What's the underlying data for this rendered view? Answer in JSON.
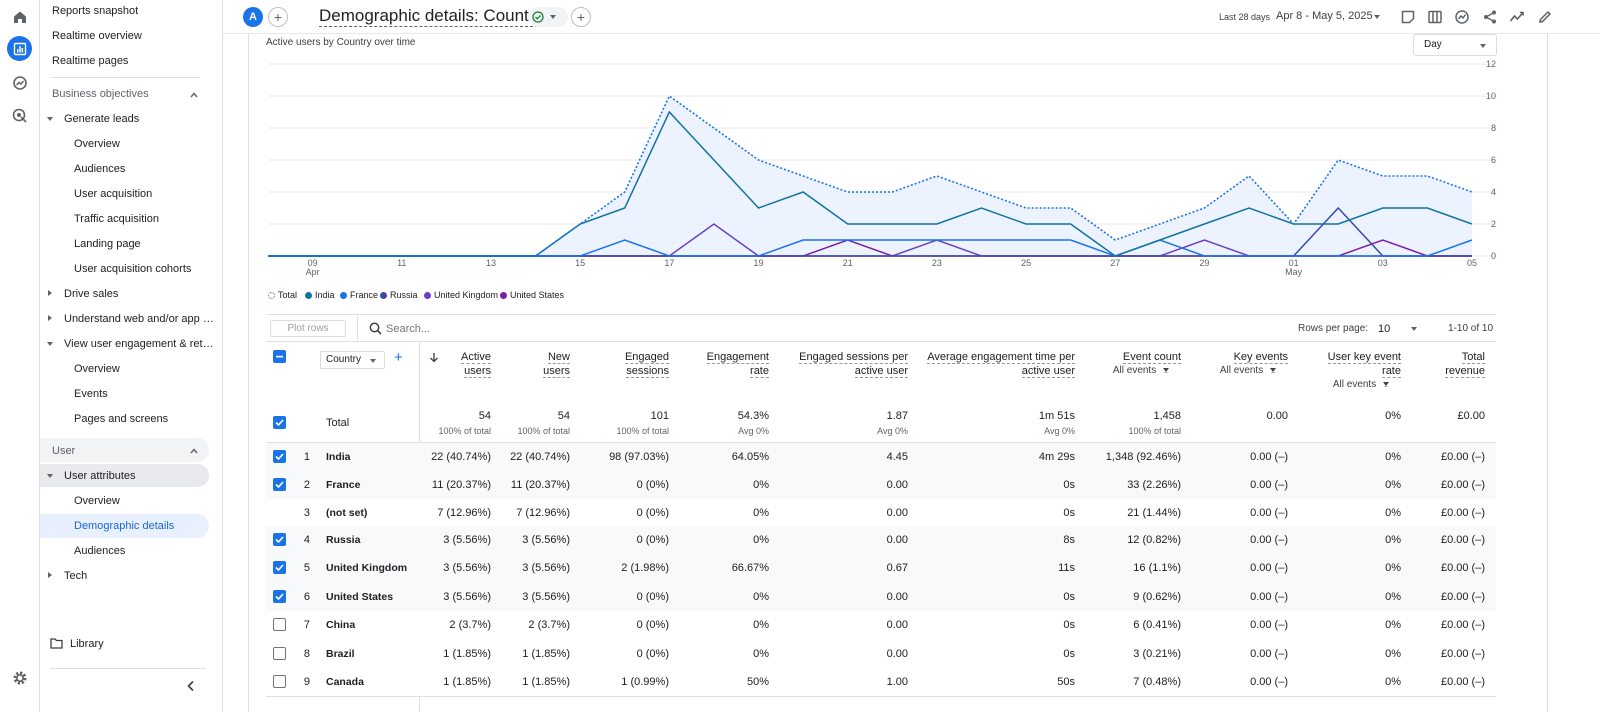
{
  "sidebar": {
    "items": [
      {
        "label": "Reports snapshot"
      },
      {
        "label": "Realtime overview"
      },
      {
        "label": "Realtime pages"
      },
      {
        "label": "Business objectives"
      },
      {
        "label": "Generate leads"
      },
      {
        "label": "Overview"
      },
      {
        "label": "Audiences"
      },
      {
        "label": "User acquisition"
      },
      {
        "label": "Traffic acquisition"
      },
      {
        "label": "Landing page"
      },
      {
        "label": "User acquisition cohorts"
      },
      {
        "label": "Drive sales"
      },
      {
        "label": "Understand web and/or app t..."
      },
      {
        "label": "View user engagement & rete..."
      },
      {
        "label": "Overview"
      },
      {
        "label": "Events"
      },
      {
        "label": "Pages and screens"
      },
      {
        "label": "User"
      },
      {
        "label": "User attributes"
      },
      {
        "label": "Overview"
      },
      {
        "label": "Demographic details"
      },
      {
        "label": "Audiences"
      },
      {
        "label": "Tech"
      }
    ],
    "library": "Library"
  },
  "header": {
    "avatar": "A",
    "title": "Demographic details: Country",
    "date_prefix": "Last 28 days",
    "date_range": "Apr 8 - May 5, 2025"
  },
  "chart_card": {
    "title": "Active users by Country over time",
    "granularity": "Day"
  },
  "chart_data": {
    "type": "line",
    "title": "Active users by Country over time",
    "x": [
      "Apr 8",
      "09",
      "10",
      "11",
      "12",
      "13",
      "14",
      "15",
      "16",
      "17",
      "18",
      "19",
      "20",
      "21",
      "22",
      "23",
      "24",
      "25",
      "26",
      "27",
      "28",
      "29",
      "30",
      "01",
      "02",
      "03",
      "04",
      "05"
    ],
    "x_tick_labels": [
      "09",
      "11",
      "13",
      "15",
      "17",
      "19",
      "21",
      "23",
      "25",
      "27",
      "29",
      "01",
      "03",
      "05"
    ],
    "x_tick_sublabels": {
      "09": "Apr",
      "01": "May"
    },
    "ylim": [
      0,
      12
    ],
    "y_ticks": [
      "0",
      "2",
      "4",
      "6",
      "8",
      "10",
      "12"
    ],
    "series": [
      {
        "name": "Total",
        "color": "#1a73e8",
        "style": "dotted",
        "values": [
          0,
          0,
          0,
          0,
          0,
          0,
          0,
          2,
          4,
          10,
          8,
          6,
          5,
          4,
          4,
          5,
          4,
          3,
          3,
          1,
          2,
          3,
          5,
          2,
          6,
          5,
          5,
          4
        ]
      },
      {
        "name": "India",
        "color": "#12739f",
        "style": "solid",
        "values": [
          0,
          0,
          0,
          0,
          0,
          0,
          0,
          2,
          3,
          9,
          6,
          3,
          4,
          2,
          2,
          2,
          3,
          2,
          2,
          0,
          1,
          2,
          3,
          2,
          2,
          3,
          3,
          2
        ]
      },
      {
        "name": "France",
        "color": "#1a73e8",
        "style": "solid",
        "values": [
          0,
          0,
          0,
          0,
          0,
          0,
          0,
          0,
          1,
          0,
          0,
          0,
          1,
          1,
          1,
          1,
          1,
          1,
          1,
          0,
          1,
          0,
          0,
          0,
          0,
          0,
          0,
          1
        ]
      },
      {
        "name": "Russia",
        "color": "#3949ab",
        "style": "solid",
        "values": [
          0,
          0,
          0,
          0,
          0,
          0,
          0,
          0,
          0,
          0,
          0,
          0,
          0,
          0,
          0,
          0,
          0,
          0,
          0,
          0,
          0,
          0,
          0,
          0,
          3,
          0,
          0,
          0
        ]
      },
      {
        "name": "United Kingdom",
        "color": "#6a3fc1",
        "style": "solid",
        "values": [
          0,
          0,
          0,
          0,
          0,
          0,
          0,
          0,
          0,
          0,
          2,
          0,
          0,
          0,
          0,
          1,
          0,
          0,
          0,
          0,
          0,
          1,
          0,
          0,
          0,
          0,
          0,
          0
        ]
      },
      {
        "name": "United States",
        "color": "#7b1fa2",
        "style": "solid",
        "values": [
          0,
          0,
          0,
          0,
          0,
          0,
          0,
          0,
          0,
          0,
          0,
          0,
          0,
          1,
          0,
          0,
          0,
          0,
          0,
          0,
          0,
          0,
          0,
          0,
          0,
          1,
          0,
          0
        ]
      }
    ]
  },
  "toolbar": {
    "plot_rows": "Plot rows",
    "search_placeholder": "Search...",
    "rows_per_page_label": "Rows per page:",
    "rows_per_page": "10",
    "pagination": "1-10 of 10"
  },
  "table": {
    "dimension": "Country",
    "columns": [
      {
        "l1": "Active",
        "l2": "users"
      },
      {
        "l1": "New",
        "l2": "users"
      },
      {
        "l1": "Engaged",
        "l2": "sessions"
      },
      {
        "l1": "Engagement",
        "l2": "rate"
      },
      {
        "l1": "Engaged sessions per",
        "l2": "active user"
      },
      {
        "l1": "Average engagement time per",
        "l2": "active user"
      },
      {
        "l1": "Event count",
        "l2": "",
        "filter": "All events"
      },
      {
        "l1": "Key events",
        "l2": "",
        "filter": "All events"
      },
      {
        "l1": "User key event",
        "l2": "rate",
        "filter": "All events"
      },
      {
        "l1": "Total",
        "l2": "revenue"
      }
    ],
    "total": {
      "label": "Total",
      "values": [
        "54",
        "54",
        "101",
        "54.3%",
        "1.87",
        "1m 51s",
        "1,458",
        "0.00",
        "0%",
        "£0.00"
      ],
      "subs": [
        "100% of total",
        "100% of total",
        "100% of total",
        "Avg 0%",
        "Avg 0%",
        "Avg 0%",
        "100% of total",
        "",
        "",
        ""
      ]
    },
    "rows": [
      {
        "num": "1",
        "name": "India",
        "checked": true,
        "values": [
          "22 (40.74%)",
          "22 (40.74%)",
          "98 (97.03%)",
          "64.05%",
          "4.45",
          "4m 29s",
          "1,348 (92.46%)",
          "0.00 (–)",
          "0%",
          "£0.00 (–)"
        ]
      },
      {
        "num": "2",
        "name": "France",
        "checked": true,
        "values": [
          "11 (20.37%)",
          "11 (20.37%)",
          "0 (0%)",
          "0%",
          "0.00",
          "0s",
          "33 (2.26%)",
          "0.00 (–)",
          "0%",
          "£0.00 (–)"
        ]
      },
      {
        "num": "3",
        "name": "(not set)",
        "checked": null,
        "values": [
          "7 (12.96%)",
          "7 (12.96%)",
          "0 (0%)",
          "0%",
          "0.00",
          "0s",
          "21 (1.44%)",
          "0.00 (–)",
          "0%",
          "£0.00 (–)"
        ]
      },
      {
        "num": "4",
        "name": "Russia",
        "checked": true,
        "values": [
          "3 (5.56%)",
          "3 (5.56%)",
          "0 (0%)",
          "0%",
          "0.00",
          "8s",
          "12 (0.82%)",
          "0.00 (–)",
          "0%",
          "£0.00 (–)"
        ]
      },
      {
        "num": "5",
        "name": "United Kingdom",
        "checked": true,
        "values": [
          "3 (5.56%)",
          "3 (5.56%)",
          "2 (1.98%)",
          "66.67%",
          "0.67",
          "11s",
          "16 (1.1%)",
          "0.00 (–)",
          "0%",
          "£0.00 (–)"
        ]
      },
      {
        "num": "6",
        "name": "United States",
        "checked": true,
        "values": [
          "3 (5.56%)",
          "3 (5.56%)",
          "0 (0%)",
          "0%",
          "0.00",
          "0s",
          "9 (0.62%)",
          "0.00 (–)",
          "0%",
          "£0.00 (–)"
        ]
      },
      {
        "num": "7",
        "name": "China",
        "checked": false,
        "values": [
          "2 (3.7%)",
          "2 (3.7%)",
          "0 (0%)",
          "0%",
          "0.00",
          "0s",
          "6 (0.41%)",
          "0.00 (–)",
          "0%",
          "£0.00 (–)"
        ]
      },
      {
        "num": "8",
        "name": "Brazil",
        "checked": false,
        "values": [
          "1 (1.85%)",
          "1 (1.85%)",
          "0 (0%)",
          "0%",
          "0.00",
          "0s",
          "3 (0.21%)",
          "0.00 (–)",
          "0%",
          "£0.00 (–)"
        ]
      },
      {
        "num": "9",
        "name": "Canada",
        "checked": false,
        "values": [
          "1 (1.85%)",
          "1 (1.85%)",
          "1 (0.99%)",
          "50%",
          "1.00",
          "50s",
          "7 (0.48%)",
          "0.00 (–)",
          "0%",
          "£0.00 (–)"
        ]
      }
    ]
  }
}
